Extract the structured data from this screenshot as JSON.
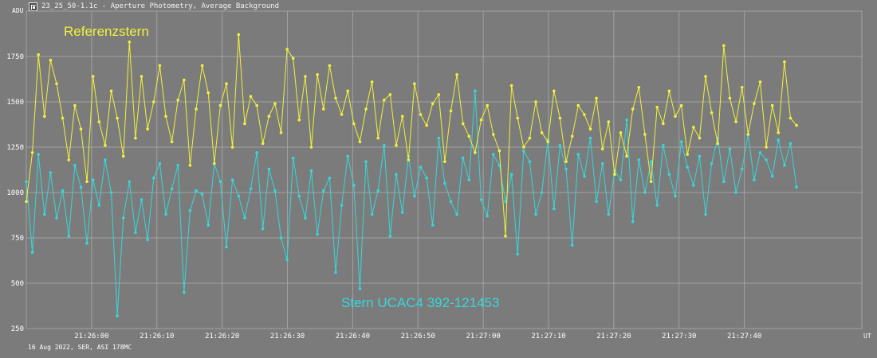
{
  "window": {
    "icon": "photometry-app-icon",
    "title": "23_25_50-1.1c - Aperture Photometry, Average Background",
    "footer": "16 Aug 2022, SER, ASI 178MC"
  },
  "colors": {
    "background": "#7b7b7b",
    "grid": "#a2a2a2",
    "reference_star": "#f2f23a",
    "target_star": "#35d8dc",
    "text": "#ffffff"
  },
  "chart_data": {
    "type": "line",
    "title": "",
    "ylabel": "ADU",
    "xlabel": "UT",
    "ylim": [
      250,
      2000
    ],
    "xlim": [
      0,
      128
    ],
    "yticks": [
      250,
      500,
      750,
      1000,
      1250,
      1500,
      1750
    ],
    "xticks": [
      {
        "t": 10,
        "label": "21:26:00"
      },
      {
        "t": 20,
        "label": "21:26:10"
      },
      {
        "t": 30,
        "label": "21:26:20"
      },
      {
        "t": 40,
        "label": "21:26:30"
      },
      {
        "t": 50,
        "label": "21:26:40"
      },
      {
        "t": 60,
        "label": "21:26:50"
      },
      {
        "t": 70,
        "label": "21:27:00"
      },
      {
        "t": 80,
        "label": "21:27:10"
      },
      {
        "t": 90,
        "label": "21:27:20"
      },
      {
        "t": 100,
        "label": "21:27:30"
      },
      {
        "t": 110,
        "label": "21:27:40"
      }
    ],
    "grid": true,
    "x_unit": "seconds",
    "x_start": 0,
    "x_end": 118,
    "annotations": [
      {
        "text": "Referenzstern",
        "series": "reference"
      },
      {
        "text": "Stern UCAC4 392-121453",
        "series": "target"
      }
    ],
    "series": [
      {
        "name": "Referenzstern",
        "key": "reference",
        "color": "#f2f23a",
        "values": [
          950,
          1220,
          1760,
          1420,
          1730,
          1600,
          1410,
          1180,
          1480,
          1350,
          1060,
          1640,
          1390,
          1260,
          1560,
          1410,
          1200,
          1830,
          1300,
          1640,
          1350,
          1500,
          1700,
          1420,
          1280,
          1510,
          1620,
          1150,
          1460,
          1700,
          1550,
          1160,
          1480,
          1600,
          1250,
          1870,
          1380,
          1530,
          1480,
          1270,
          1420,
          1490,
          1330,
          1790,
          1740,
          1400,
          1640,
          1250,
          1650,
          1460,
          1700,
          1520,
          1430,
          1560,
          1380,
          1280,
          1460,
          1610,
          1300,
          1510,
          1540,
          1260,
          1420,
          1180,
          1600,
          1430,
          1370,
          1490,
          1540,
          1170,
          1450,
          1650,
          1380,
          1310,
          1220,
          1400,
          1480,
          1320,
          1230,
          760,
          1590,
          1410,
          1250,
          1300,
          1500,
          1330,
          1280,
          1560,
          1410,
          1170,
          1310,
          1480,
          1430,
          1350,
          1520,
          1240,
          1390,
          1100,
          1330,
          1200,
          1460,
          1580,
          1320,
          1060,
          1470,
          1380,
          1560,
          1420,
          1480,
          1210,
          1360,
          1300,
          1640,
          1440,
          1270,
          1810,
          1520,
          1390,
          1580,
          1320,
          1490,
          1610,
          1250,
          1480,
          1330,
          1720,
          1410,
          1370
        ],
        "points_note": ""
      },
      {
        "name": "Stern UCAC4 392-121453",
        "key": "target",
        "color": "#35d8dc",
        "values": [
          1060,
          670,
          1210,
          880,
          1110,
          860,
          1010,
          760,
          1150,
          1030,
          720,
          1070,
          930,
          1180,
          1000,
          320,
          860,
          1060,
          780,
          960,
          740,
          1080,
          1160,
          880,
          1020,
          1150,
          450,
          900,
          1010,
          990,
          820,
          1160,
          1060,
          700,
          1070,
          980,
          860,
          1020,
          1220,
          800,
          1130,
          1010,
          750,
          630,
          1190,
          980,
          860,
          1120,
          770,
          1010,
          1080,
          560,
          930,
          1200,
          1040,
          470,
          1170,
          880,
          1010,
          1260,
          760,
          1100,
          890,
          1200,
          980,
          1140,
          1080,
          820,
          1300,
          1050,
          950,
          880,
          1190,
          1070,
          1560,
          960,
          870,
          1210,
          1150,
          950,
          1100,
          660,
          1230,
          1170,
          880,
          1000,
          1290,
          910,
          1260,
          1130,
          710,
          1210,
          1090,
          1300,
          950,
          1160,
          880,
          1120,
          1070,
          1400,
          840,
          1180,
          1000,
          1170,
          930,
          1260,
          1100,
          980,
          1280,
          1140,
          1040,
          1200,
          880,
          1160,
          1300,
          1060,
          1240,
          1000,
          1130,
          1320,
          1070,
          1220,
          1180,
          1090,
          1290,
          1150,
          1270,
          1030
        ],
        "points_note": ""
      }
    ]
  }
}
